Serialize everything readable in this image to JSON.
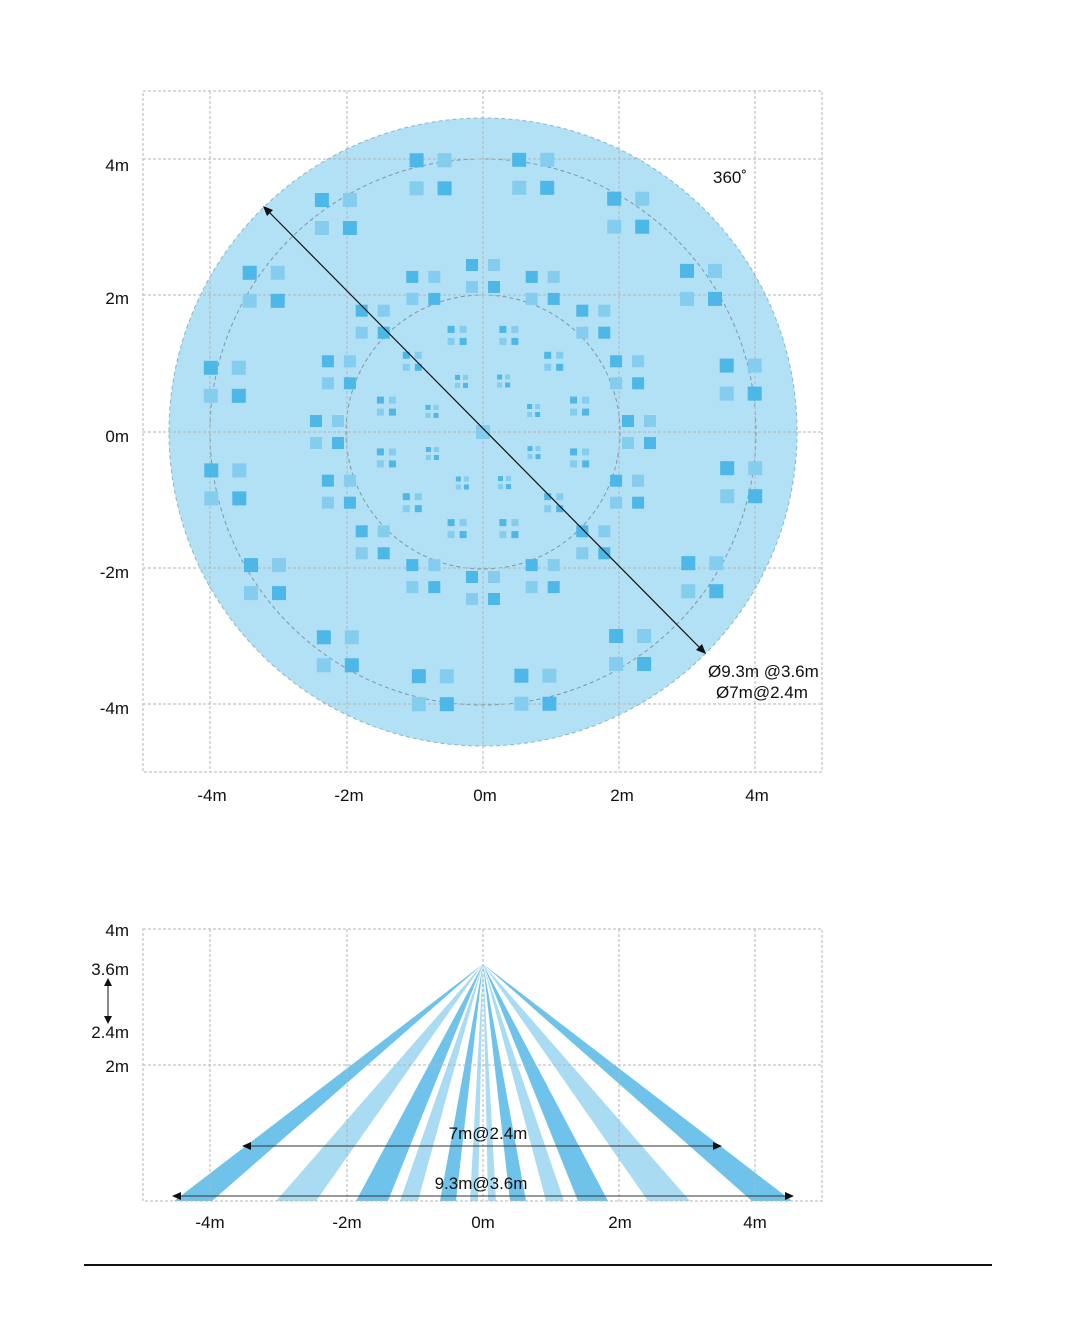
{
  "top_view": {
    "x_tick_labels": [
      "-4m",
      "-2m",
      "0m",
      "2m",
      "4m"
    ],
    "y_tick_labels": [
      "4m",
      "2m",
      "0m",
      "-2m",
      "-4m"
    ],
    "angle_label": "360˚",
    "diameter_label_1": "Ø9.3m @3.6m",
    "diameter_label_2": "Ø7m@2.4m"
  },
  "side_view": {
    "x_tick_labels": [
      "-4m",
      "-2m",
      "0m",
      "2m",
      "4m"
    ],
    "y_tick_labels": [
      "4m",
      "3.6m",
      "2.4m",
      "2m"
    ],
    "range_label_low": "7m@2.4m",
    "range_label_high": "9.3m@3.6m"
  },
  "colors": {
    "coverage_fill": "#b2e0f4",
    "zone_dark": "#4db7e8",
    "zone_light": "#85cdee",
    "beam_dark": "#6fc3ea",
    "beam_light": "#a9dcf2"
  }
}
